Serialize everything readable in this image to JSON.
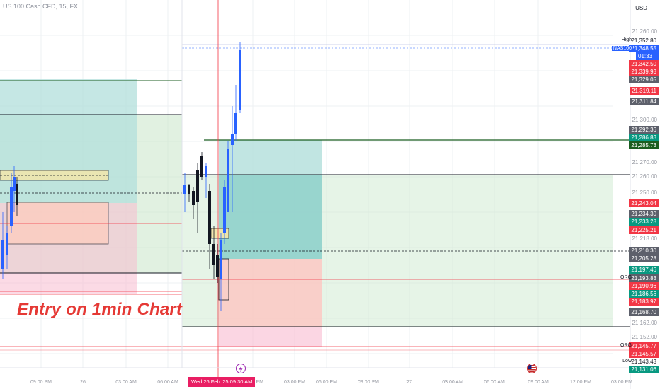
{
  "header": {
    "title": "US 100 Cash CFD, 15, FX",
    "currency": "USD"
  },
  "annotation": "Entry on 1min Chart",
  "cursor_time": "Wed 26 Feb '25   09:30 AM",
  "symbol_tag": {
    "label": "NAS100",
    "price": "21,348.55",
    "countdown": "01:33"
  },
  "axis_labels": [
    {
      "text": "21,260.00",
      "y": 21260
    },
    {
      "text": "21,300.00",
      "y": 21300
    },
    {
      "text": "21,270.00",
      "y": 21270
    },
    {
      "text": "21,260.00",
      "y": 21260
    },
    {
      "text": "21,250.00",
      "y": 21250
    },
    {
      "text": "21,218.00",
      "y": 21218
    },
    {
      "text": "21,162.00",
      "y": 21162
    },
    {
      "text": "21,152.00",
      "y": 21152
    }
  ],
  "price_tags": [
    {
      "text": "21,352.80",
      "color": "#ffffff",
      "text_color": "#131722",
      "side": "High"
    },
    {
      "text": "21,342.50",
      "color": "#f23645"
    },
    {
      "text": "21,339.93",
      "color": "#f23645"
    },
    {
      "text": "21,329.05",
      "color": "#5d606b"
    },
    {
      "text": "21,319.11",
      "color": "#f23645"
    },
    {
      "text": "21,311.84",
      "color": "#5d606b"
    },
    {
      "text": "21,292.36",
      "color": "#5d606b"
    },
    {
      "text": "21,286.83",
      "color": "#089981"
    },
    {
      "text": "21,285.73",
      "color": "#1b5e20"
    },
    {
      "text": "21,243.04",
      "color": "#f23645"
    },
    {
      "text": "21,234.30",
      "color": "#5d606b"
    },
    {
      "text": "21,233.28",
      "color": "#089981"
    },
    {
      "text": "21,225.21",
      "color": "#f23645"
    },
    {
      "text": "21,210.30",
      "color": "#5d606b"
    },
    {
      "text": "21,205.28",
      "color": "#5d606b"
    },
    {
      "text": "21,197.46",
      "color": "#089981"
    },
    {
      "text": "21,193.83",
      "color": "#5d606b",
      "side": "ORG"
    },
    {
      "text": "21,190.96",
      "color": "#f23645"
    },
    {
      "text": "21,186.56",
      "color": "#089981"
    },
    {
      "text": "21,183.97",
      "color": "#f23645"
    },
    {
      "text": "21,168.70",
      "color": "#5d606b"
    },
    {
      "text": "21,145.77",
      "color": "#f23645",
      "side": "ORG"
    },
    {
      "text": "21,145.57",
      "color": "#f23645"
    },
    {
      "text": "21,143.43",
      "color": "#ffffff",
      "text_color": "#131722",
      "side": "Low"
    },
    {
      "text": "21,131.06",
      "color": "#089981"
    }
  ],
  "time_axis": [
    "09:00 PM",
    "26",
    "03:00 AM",
    "06:00 AM",
    "12:00 PM",
    "03:00 PM",
    "06:00 PM",
    "09:00 PM",
    "27",
    "03:00 AM",
    "06:00 AM",
    "09:00 AM",
    "12:00 PM",
    "03:00 PM"
  ],
  "colors": {
    "bull": "#2962ff",
    "bear": "#131722",
    "target_zone": "#b2dfdb",
    "stop_zone": "#f8bbd0",
    "range_zone": "#c8e6c9",
    "order_block": "#f5e6a8",
    "orange_zone": "#ffccbc",
    "accent_line": "#f23645",
    "dark_green": "#1b5e20"
  },
  "icons": [
    "lightning-icon",
    "us-flag-icon"
  ]
}
